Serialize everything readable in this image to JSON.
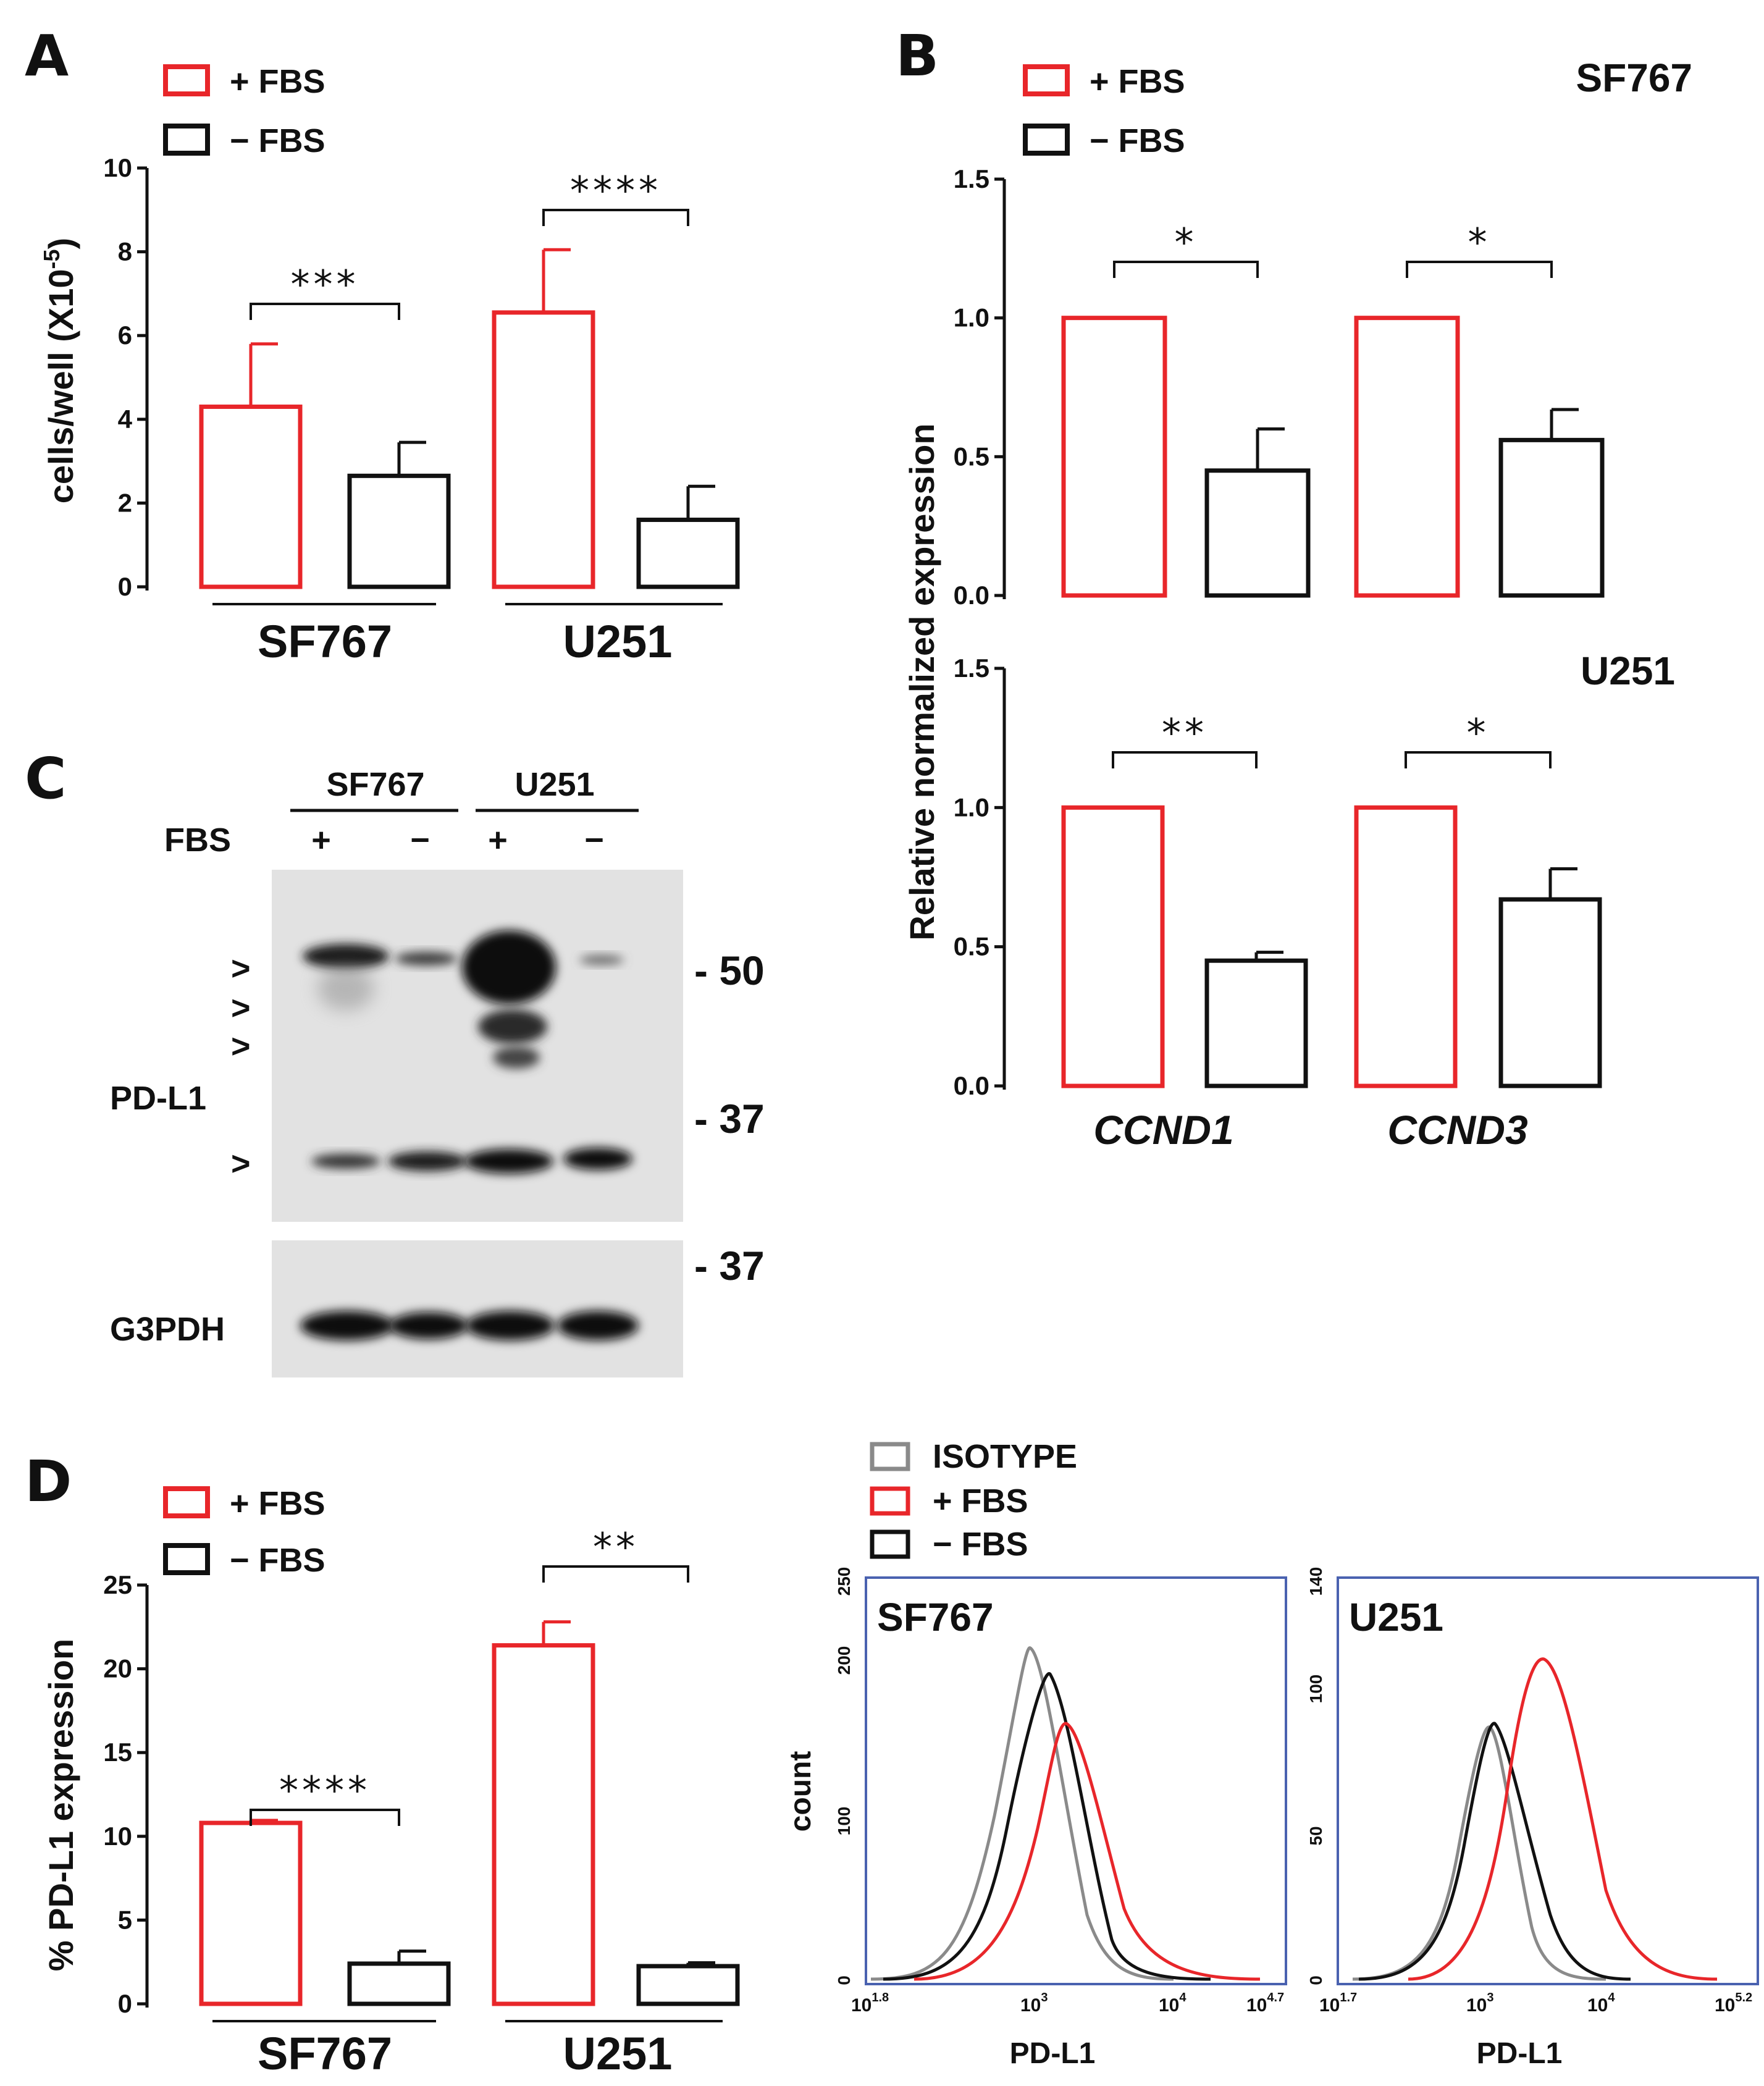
{
  "colors": {
    "plus_fbs": "#e8262a",
    "minus_fbs": "#111111",
    "isotype": "#8a8a8a",
    "flow_frame": "#4a62b0"
  },
  "legend": {
    "plus": "+ FBS",
    "minus": "− FBS",
    "isotype": "ISOTYPE"
  },
  "panelA": {
    "letter": "A",
    "chart_data": {
      "type": "bar",
      "ylabel": "cells/well (X10",
      "ylabel_sup": "-5",
      "ylabel_end": ")",
      "ylim": [
        0,
        10
      ],
      "yticks": [
        "0",
        "2",
        "4",
        "6",
        "8",
        "10"
      ],
      "categories": [
        "SF767",
        "U251"
      ],
      "series": [
        {
          "name": "+ FBS",
          "values": [
            4.3,
            6.55
          ],
          "errors": [
            1.5,
            1.5
          ]
        },
        {
          "name": "− FBS",
          "values": [
            2.65,
            1.6
          ],
          "errors": [
            0.8,
            0.8
          ]
        }
      ],
      "significance": [
        "***",
        "****"
      ]
    }
  },
  "panelB": {
    "letter": "B",
    "ylabel": "Relative normalized expression",
    "genes": [
      "CCND1",
      "CCND3"
    ],
    "charts": [
      {
        "title": "SF767",
        "chart_data": {
          "type": "bar",
          "ylim": [
            0,
            1.5
          ],
          "yticks": [
            "0.0",
            "0.5",
            "1.0",
            "1.5"
          ],
          "categories": [
            "CCND1",
            "CCND3"
          ],
          "series": [
            {
              "name": "+ FBS",
              "values": [
                1.0,
                1.0
              ],
              "errors": [
                0,
                0
              ]
            },
            {
              "name": "− FBS",
              "values": [
                0.45,
                0.56
              ],
              "errors": [
                0.15,
                0.11
              ]
            }
          ],
          "significance": [
            "*",
            "*"
          ]
        }
      },
      {
        "title": "U251",
        "chart_data": {
          "type": "bar",
          "ylim": [
            0,
            1.5
          ],
          "yticks": [
            "0.0",
            "0.5",
            "1.0",
            "1.5"
          ],
          "categories": [
            "CCND1",
            "CCND3"
          ],
          "series": [
            {
              "name": "+ FBS",
              "values": [
                1.0,
                1.0
              ],
              "errors": [
                0,
                0
              ]
            },
            {
              "name": "− FBS",
              "values": [
                0.45,
                0.67
              ],
              "errors": [
                0.03,
                0.11
              ]
            }
          ],
          "significance": [
            "**",
            "*"
          ]
        }
      }
    ]
  },
  "panelC": {
    "letter": "C",
    "cell_lines": [
      "SF767",
      "U251"
    ],
    "fbs_label": "FBS",
    "lanes": [
      "+",
      "−",
      "+",
      "−"
    ],
    "protein_top": "PD-L1",
    "protein_bottom": "G3PDH",
    "markers": [
      "- 50",
      "- 37",
      "- 37"
    ],
    "arrows": [
      ">",
      ">",
      ">",
      ">"
    ]
  },
  "panelD": {
    "letter": "D",
    "chart_data": {
      "type": "bar",
      "ylabel": "% PD-L1 expression",
      "ylim": [
        0,
        25
      ],
      "yticks": [
        "0",
        "5",
        "10",
        "15",
        "20",
        "25"
      ],
      "categories": [
        "SF767",
        "U251"
      ],
      "series": [
        {
          "name": "+ FBS",
          "values": [
            10.8,
            21.4
          ],
          "errors": [
            0.15,
            1.4
          ]
        },
        {
          "name": "− FBS",
          "values": [
            2.4,
            2.25
          ],
          "errors": [
            0.75,
            0.2
          ]
        }
      ],
      "significance": [
        "****",
        "**"
      ]
    },
    "flow": [
      {
        "title": "SF767",
        "ylabel": "count",
        "xlabel": "PD-L1",
        "yticks": [
          "0",
          "100",
          "200",
          "250"
        ],
        "xticks": [
          {
            "base": "10",
            "exp": "1.8"
          },
          {
            "base": "10",
            "exp": "3"
          },
          {
            "base": "10",
            "exp": "4"
          },
          {
            "base": "10",
            "exp": "4.7"
          }
        ]
      },
      {
        "title": "U251",
        "ylabel": "",
        "xlabel": "PD-L1",
        "yticks": [
          "0",
          "50",
          "100",
          "140"
        ],
        "xticks": [
          {
            "base": "10",
            "exp": "1.7"
          },
          {
            "base": "10",
            "exp": "3"
          },
          {
            "base": "10",
            "exp": "4"
          },
          {
            "base": "10",
            "exp": "5.2"
          }
        ]
      }
    ]
  }
}
